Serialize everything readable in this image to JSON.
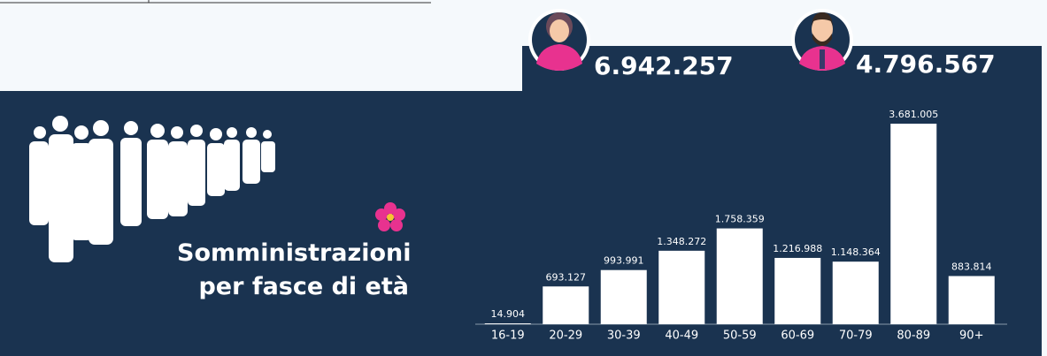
{
  "counters": [
    "6.942.257",
    "4.796.567"
  ],
  "chart_data": {
    "type": "bar",
    "title": "Somministrazioni per fasce di età",
    "categories": [
      "16-19",
      "20-29",
      "30-39",
      "40-49",
      "50-59",
      "60-69",
      "70-79",
      "80-89",
      "90+"
    ],
    "values": [
      14904,
      693127,
      993991,
      1348272,
      1758359,
      1216988,
      1148364,
      3681005,
      883814
    ],
    "value_labels": [
      "14.904",
      "693.127",
      "993.991",
      "1.348.272",
      "1.758.359",
      "1.216.988",
      "1.148.364",
      "3.681.005",
      "883.814"
    ],
    "color": "#ffffff"
  }
}
